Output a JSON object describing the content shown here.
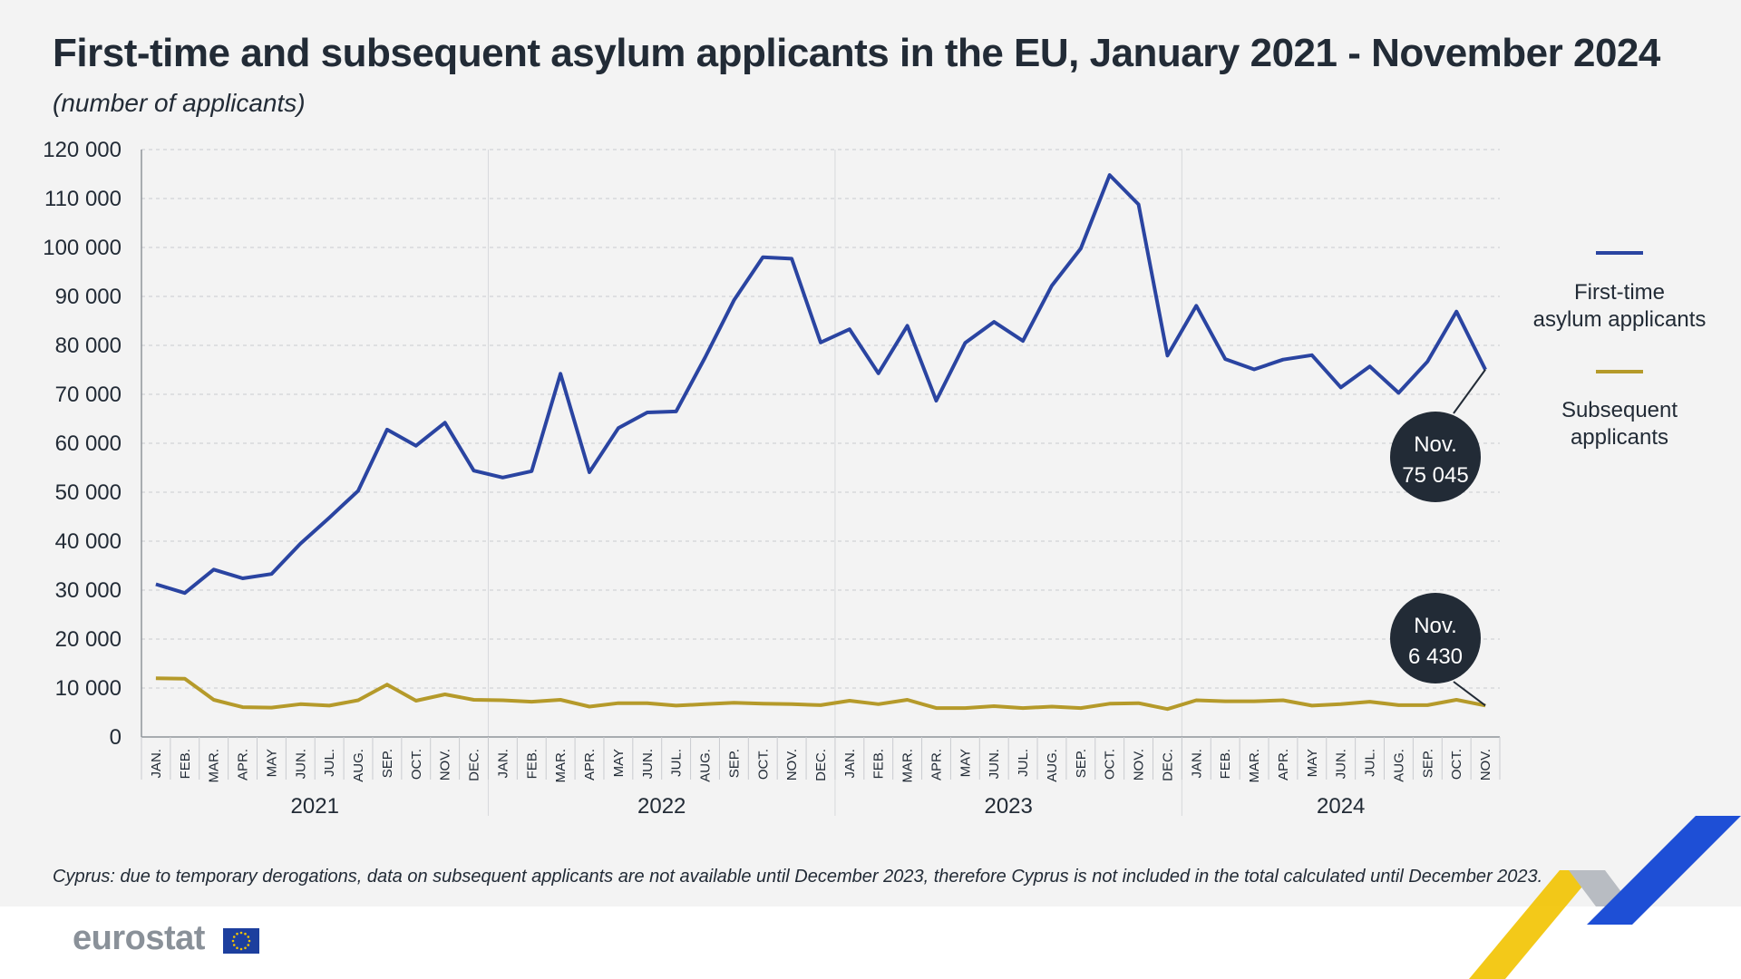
{
  "title": "First-time and subsequent asylum applicants in the EU, January 2021 - November 2024",
  "subtitle": "(number of applicants)",
  "footnote": "Cyprus: due to temporary derogations, data on subsequent applicants are not available until December 2023, therefore Cyprus is not included in the total calculated until December 2023.",
  "logo": {
    "text": "eurostat",
    "icon": "eu-flag-icon"
  },
  "colors": {
    "first_time": "#2a44a1",
    "subsequent": "#b59a2a",
    "callout": "#222b36",
    "accent_yellow": "#f2c300",
    "accent_blue": "#1e4fd6",
    "accent_gray": "#b8bcc2"
  },
  "chart_data": {
    "type": "line",
    "ylim": [
      0,
      120000
    ],
    "yticks": [
      {
        "value": 0,
        "label": "0"
      },
      {
        "value": 10000,
        "label": "10 000"
      },
      {
        "value": 20000,
        "label": "20 000"
      },
      {
        "value": 30000,
        "label": "30 000"
      },
      {
        "value": 40000,
        "label": "40 000"
      },
      {
        "value": 50000,
        "label": "50 000"
      },
      {
        "value": 60000,
        "label": "60 000"
      },
      {
        "value": 70000,
        "label": "70 000"
      },
      {
        "value": 80000,
        "label": "80 000"
      },
      {
        "value": 90000,
        "label": "90 000"
      },
      {
        "value": 100000,
        "label": "100 000"
      },
      {
        "value": 110000,
        "label": "110 000"
      },
      {
        "value": 120000,
        "label": "120 000"
      }
    ],
    "grid": "horizontal dashed",
    "months": [
      "JAN.",
      "FEB.",
      "MAR.",
      "APR.",
      "MAY",
      "JUN.",
      "JUL.",
      "AUG.",
      "SEP.",
      "OCT.",
      "NOV.",
      "DEC.",
      "JAN.",
      "FEB.",
      "MAR.",
      "APR.",
      "MAY",
      "JUN.",
      "JUL.",
      "AUG.",
      "SEP.",
      "OCT.",
      "NOV.",
      "DEC.",
      "JAN.",
      "FEB.",
      "MAR.",
      "APR.",
      "MAY",
      "JUN.",
      "JUL.",
      "AUG.",
      "SEP.",
      "OCT.",
      "NOV.",
      "DEC.",
      "JAN.",
      "FEB.",
      "MAR.",
      "APR.",
      "MAY",
      "JUN.",
      "JUL.",
      "AUG.",
      "SEP.",
      "OCT.",
      "NOV."
    ],
    "years": [
      {
        "label": "2021",
        "count": 12
      },
      {
        "label": "2022",
        "count": 12
      },
      {
        "label": "2023",
        "count": 12
      },
      {
        "label": "2024",
        "count": 11
      }
    ],
    "legend_position": "right",
    "series": [
      {
        "name": "First-time\nasylum applicants",
        "color": "#2a44a1",
        "values": [
          31200,
          29400,
          34200,
          32400,
          33300,
          39500,
          44800,
          50300,
          62800,
          59500,
          64200,
          54400,
          53000,
          54300,
          74200,
          54100,
          63100,
          66300,
          66500,
          77500,
          89200,
          98000,
          97700,
          80600,
          83300,
          74300,
          84000,
          68700,
          80500,
          84800,
          80900,
          92200,
          99800,
          114800,
          108800,
          77900,
          88100,
          77200,
          75100,
          77100,
          78000,
          71400,
          75700,
          70300,
          76700,
          86900,
          75045
        ]
      },
      {
        "name": "Subsequent\napplicants",
        "color": "#b59a2a",
        "values": [
          12000,
          11900,
          7600,
          6100,
          6000,
          6700,
          6400,
          7500,
          10700,
          7400,
          8700,
          7600,
          7500,
          7200,
          7600,
          6200,
          6900,
          6900,
          6400,
          6700,
          7000,
          6800,
          6700,
          6500,
          7400,
          6700,
          7600,
          5900,
          5900,
          6300,
          5900,
          6200,
          5900,
          6800,
          6900,
          5700,
          7500,
          7300,
          7300,
          7500,
          6400,
          6700,
          7200,
          6500,
          6500,
          7600,
          6430
        ]
      }
    ],
    "annotations": [
      {
        "series": 0,
        "label_top": "Nov.",
        "label_bottom": "75 045"
      },
      {
        "series": 1,
        "label_top": "Nov.",
        "label_bottom": "6 430"
      }
    ]
  }
}
